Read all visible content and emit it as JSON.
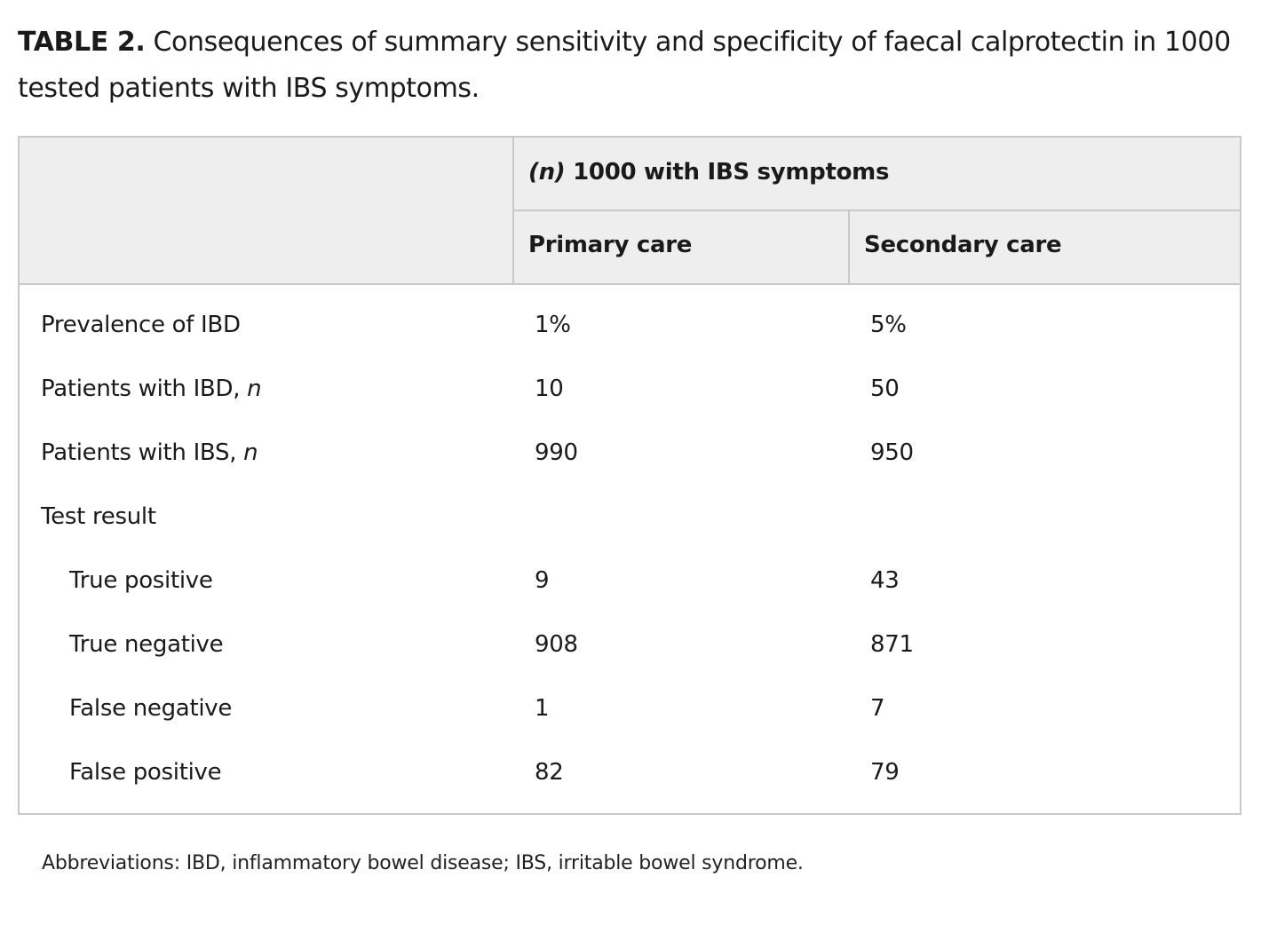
{
  "caption": {
    "label": "TABLE 2.",
    "text": " Consequences of summary sensitivity and specificity of faecal calprotectin in 1000 tested patients with IBS symptoms."
  },
  "table": {
    "group_header": {
      "n_symbol": "(n)",
      "text": " 1000 with IBS symptoms"
    },
    "columns": [
      "Primary care",
      "Secondary care"
    ],
    "rows": [
      {
        "label": "Prevalence of IBD",
        "label_suffix": "",
        "indent": false,
        "primary": "1%",
        "secondary": "5%"
      },
      {
        "label": "Patients with IBD, ",
        "label_suffix": "n",
        "indent": false,
        "primary": "10",
        "secondary": "50"
      },
      {
        "label": "Patients with IBS, ",
        "label_suffix": "n",
        "indent": false,
        "primary": "990",
        "secondary": "950"
      },
      {
        "label": "Test result",
        "label_suffix": "",
        "indent": false,
        "primary": "",
        "secondary": ""
      },
      {
        "label": "True positive",
        "label_suffix": "",
        "indent": true,
        "primary": "9",
        "secondary": "43"
      },
      {
        "label": "True negative",
        "label_suffix": "",
        "indent": true,
        "primary": "908",
        "secondary": "871"
      },
      {
        "label": "False negative",
        "label_suffix": "",
        "indent": true,
        "primary": "1",
        "secondary": "7"
      },
      {
        "label": "False positive",
        "label_suffix": "",
        "indent": true,
        "primary": "82",
        "secondary": "79"
      }
    ]
  },
  "footnote": "Abbreviations: IBD, inflammatory bowel disease; IBS, irritable bowel syndrome."
}
